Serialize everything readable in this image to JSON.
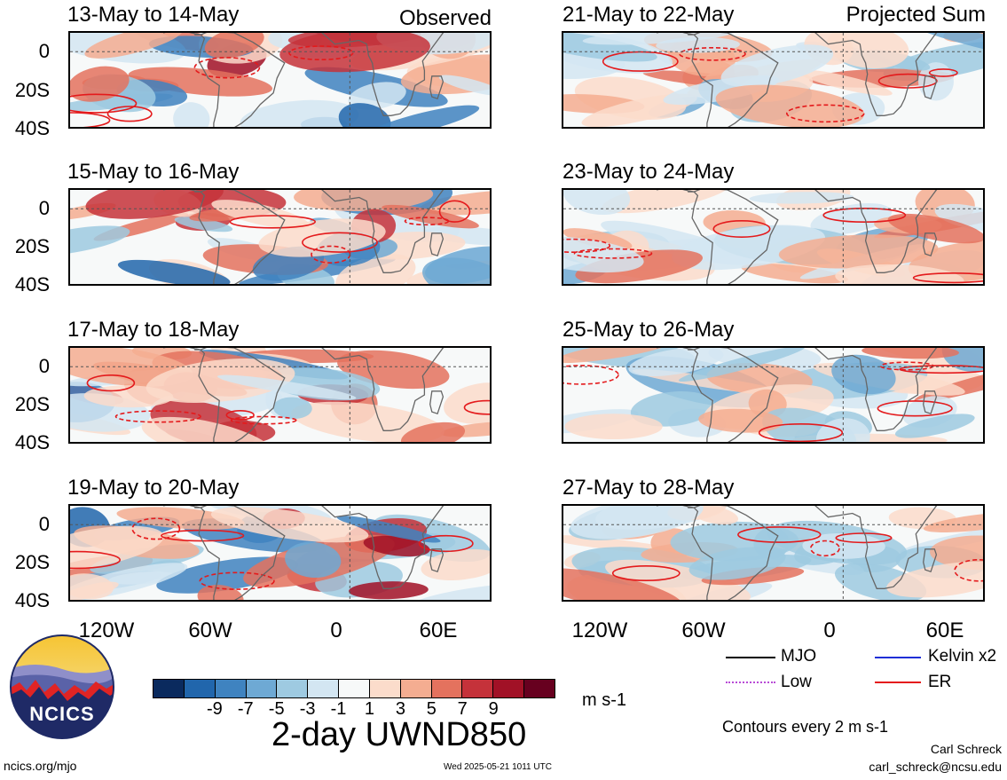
{
  "panels": [
    {
      "title": "13-May to 14-May",
      "tag": "Observed"
    },
    {
      "title": "15-May to 16-May",
      "tag": ""
    },
    {
      "title": "17-May to 18-May",
      "tag": ""
    },
    {
      "title": "19-May to 20-May",
      "tag": ""
    },
    {
      "title": "21-May to 22-May",
      "tag": "Projected Sum"
    },
    {
      "title": "23-May to 24-May",
      "tag": ""
    },
    {
      "title": "25-May to 26-May",
      "tag": ""
    },
    {
      "title": "27-May to 28-May",
      "tag": ""
    }
  ],
  "y_ticks": [
    "0",
    "20S",
    "40S"
  ],
  "x_ticks": [
    "120W",
    "60W",
    "0",
    "60E"
  ],
  "colorbar": {
    "colors": [
      "#0a2a5e",
      "#2166ac",
      "#3f83c0",
      "#6ea9d4",
      "#9ecae1",
      "#d3e6f2",
      "#f7f9f9",
      "#fbdccb",
      "#f4ad91",
      "#e4725e",
      "#c5323a",
      "#a11126",
      "#67001f"
    ],
    "ticks": [
      "-9",
      "-7",
      "-5",
      "-3",
      "-1",
      "1",
      "3",
      "5",
      "7",
      "9"
    ],
    "units": "m s-1",
    "title": "2-day UWND850"
  },
  "legend": [
    {
      "label": "MJO",
      "color": "#000000"
    },
    {
      "label": "Kelvin x2",
      "color": "#1f2fd6"
    },
    {
      "label": "Low",
      "color": "#b84bd6"
    },
    {
      "label": "ER",
      "color": "#e41a1c"
    }
  ],
  "contour_note": "Contours every 2 m s-1",
  "footer": {
    "left": "ncics.org/mjo",
    "center": "Wed 2025-05-21 1011 UTC",
    "author": "Carl Schreck",
    "email": "carl_schreck@ncsu.edu"
  },
  "logo_text": "NCICS"
}
